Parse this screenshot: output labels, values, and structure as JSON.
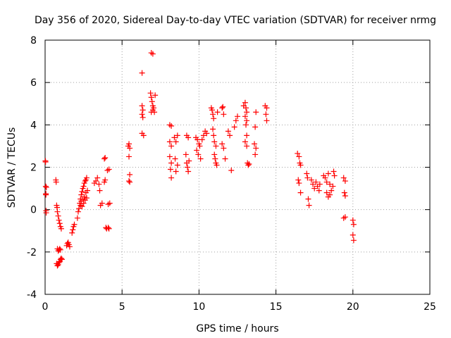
{
  "chart_data": {
    "type": "scatter",
    "title": "Day 356 of 2020, Sidereal Day-to-day VTEC variation (SDTVAR) for receiver nrmg",
    "xlabel": "GPS time / hours",
    "ylabel": "SDTVAR / TECUs",
    "xlim": [
      0,
      25
    ],
    "ylim": [
      -4,
      8
    ],
    "xticks": [
      "0",
      "5",
      "10",
      "15",
      "20",
      "25"
    ],
    "yticks": [
      "-4",
      "-2",
      "0",
      "2",
      "4",
      "6",
      "8"
    ],
    "grid": true,
    "marker": "plus",
    "color": "#ff0000",
    "series": [
      {
        "name": "SDTVAR",
        "points": [
          [
            0.02,
            2.3
          ],
          [
            0.03,
            2.25
          ],
          [
            0.04,
            1.1
          ],
          [
            0.05,
            0.7
          ],
          [
            0.05,
            0.75
          ],
          [
            0.06,
            -0.05
          ],
          [
            0.07,
            -0.15
          ],
          [
            0.08,
            1.05
          ],
          [
            0.7,
            1.4
          ],
          [
            0.72,
            1.3
          ],
          [
            0.75,
            0.2
          ],
          [
            0.78,
            0.1
          ],
          [
            0.8,
            -0.1
          ],
          [
            0.85,
            -0.3
          ],
          [
            0.9,
            -0.5
          ],
          [
            0.95,
            -0.65
          ],
          [
            1.0,
            -0.8
          ],
          [
            1.05,
            -0.9
          ],
          [
            0.8,
            -1.85
          ],
          [
            0.85,
            -1.95
          ],
          [
            0.9,
            -1.9
          ],
          [
            0.95,
            -1.85
          ],
          [
            1.0,
            -1.9
          ],
          [
            0.75,
            -2.55
          ],
          [
            0.8,
            -2.65
          ],
          [
            0.85,
            -2.6
          ],
          [
            0.9,
            -2.5
          ],
          [
            0.95,
            -2.45
          ],
          [
            1.0,
            -2.35
          ],
          [
            1.05,
            -2.3
          ],
          [
            1.1,
            -2.35
          ],
          [
            1.4,
            -1.7
          ],
          [
            1.45,
            -1.6
          ],
          [
            1.5,
            -1.55
          ],
          [
            1.55,
            -1.65
          ],
          [
            1.6,
            -1.75
          ],
          [
            1.75,
            -1.1
          ],
          [
            1.8,
            -0.95
          ],
          [
            1.85,
            -0.8
          ],
          [
            1.9,
            -0.7
          ],
          [
            2.1,
            -0.4
          ],
          [
            2.15,
            -0.1
          ],
          [
            2.2,
            0.05
          ],
          [
            2.25,
            0.3
          ],
          [
            2.3,
            0.5
          ],
          [
            2.35,
            0.7
          ],
          [
            2.4,
            0.85
          ],
          [
            2.45,
            1.0
          ],
          [
            2.5,
            1.1
          ],
          [
            2.55,
            1.25
          ],
          [
            2.6,
            1.35
          ],
          [
            2.65,
            1.4
          ],
          [
            2.7,
            1.5
          ],
          [
            2.3,
            0.2
          ],
          [
            2.35,
            0.4
          ],
          [
            2.4,
            0.15
          ],
          [
            2.45,
            0.5
          ],
          [
            2.5,
            0.3
          ],
          [
            2.55,
            0.6
          ],
          [
            2.6,
            0.45
          ],
          [
            2.65,
            0.8
          ],
          [
            2.7,
            0.55
          ],
          [
            2.75,
            0.9
          ],
          [
            3.2,
            1.25
          ],
          [
            3.3,
            1.35
          ],
          [
            3.4,
            1.5
          ],
          [
            3.5,
            1.2
          ],
          [
            3.55,
            0.9
          ],
          [
            3.6,
            0.2
          ],
          [
            3.7,
            0.3
          ],
          [
            3.85,
            2.4
          ],
          [
            3.9,
            2.45
          ],
          [
            3.85,
            1.3
          ],
          [
            3.9,
            1.4
          ],
          [
            3.95,
            -0.85
          ],
          [
            4.0,
            -0.9
          ],
          [
            4.1,
            -0.85
          ],
          [
            4.15,
            -0.9
          ],
          [
            4.1,
            0.25
          ],
          [
            4.2,
            0.3
          ],
          [
            4.05,
            1.85
          ],
          [
            4.15,
            1.9
          ],
          [
            5.4,
            3.0
          ],
          [
            5.45,
            3.1
          ],
          [
            5.5,
            2.9
          ],
          [
            5.45,
            2.5
          ],
          [
            5.5,
            1.65
          ],
          [
            5.45,
            1.35
          ],
          [
            5.5,
            1.3
          ],
          [
            6.3,
            4.9
          ],
          [
            6.35,
            4.7
          ],
          [
            6.3,
            4.5
          ],
          [
            6.35,
            4.35
          ],
          [
            6.3,
            3.6
          ],
          [
            6.4,
            3.5
          ],
          [
            6.3,
            6.45
          ],
          [
            6.9,
            7.4
          ],
          [
            7.0,
            7.35
          ],
          [
            6.85,
            5.5
          ],
          [
            6.9,
            5.3
          ],
          [
            6.95,
            5.1
          ],
          [
            7.0,
            4.9
          ],
          [
            7.05,
            4.8
          ],
          [
            7.1,
            4.6
          ],
          [
            7.15,
            5.4
          ],
          [
            6.9,
            4.6
          ],
          [
            7.0,
            4.7
          ],
          [
            8.1,
            4.0
          ],
          [
            8.2,
            3.95
          ],
          [
            8.1,
            3.2
          ],
          [
            8.2,
            3.0
          ],
          [
            8.1,
            2.5
          ],
          [
            8.2,
            2.2
          ],
          [
            8.15,
            1.9
          ],
          [
            8.2,
            1.5
          ],
          [
            8.4,
            3.4
          ],
          [
            8.5,
            3.2
          ],
          [
            8.45,
            2.4
          ],
          [
            8.5,
            1.8
          ],
          [
            8.6,
            3.5
          ],
          [
            8.6,
            2.1
          ],
          [
            9.2,
            3.5
          ],
          [
            9.3,
            3.4
          ],
          [
            9.15,
            2.6
          ],
          [
            9.2,
            2.2
          ],
          [
            9.25,
            2.0
          ],
          [
            9.3,
            1.8
          ],
          [
            9.35,
            2.3
          ],
          [
            9.8,
            3.4
          ],
          [
            9.9,
            3.3
          ],
          [
            9.85,
            2.8
          ],
          [
            9.95,
            2.6
          ],
          [
            10.0,
            3.1
          ],
          [
            10.05,
            3.0
          ],
          [
            10.1,
            2.4
          ],
          [
            10.2,
            3.3
          ],
          [
            10.3,
            3.5
          ],
          [
            10.4,
            3.7
          ],
          [
            10.5,
            3.6
          ],
          [
            10.8,
            4.8
          ],
          [
            10.85,
            4.7
          ],
          [
            10.9,
            4.5
          ],
          [
            10.95,
            4.3
          ],
          [
            10.9,
            3.8
          ],
          [
            10.95,
            3.5
          ],
          [
            11.0,
            2.6
          ],
          [
            11.05,
            2.4
          ],
          [
            11.1,
            2.2
          ],
          [
            11.15,
            2.1
          ],
          [
            11.0,
            3.2
          ],
          [
            11.1,
            3.0
          ],
          [
            11.2,
            4.6
          ],
          [
            11.5,
            4.8
          ],
          [
            11.55,
            4.85
          ],
          [
            11.6,
            4.5
          ],
          [
            11.5,
            3.1
          ],
          [
            11.6,
            2.9
          ],
          [
            11.7,
            2.4
          ],
          [
            11.9,
            3.7
          ],
          [
            12.0,
            3.5
          ],
          [
            12.1,
            1.85
          ],
          [
            12.3,
            3.9
          ],
          [
            12.4,
            4.2
          ],
          [
            12.5,
            4.4
          ],
          [
            12.9,
            4.9
          ],
          [
            13.0,
            5.05
          ],
          [
            13.05,
            4.8
          ],
          [
            13.1,
            4.6
          ],
          [
            13.0,
            4.4
          ],
          [
            13.1,
            4.2
          ],
          [
            13.05,
            4.0
          ],
          [
            13.1,
            3.5
          ],
          [
            13.0,
            3.2
          ],
          [
            13.1,
            3.0
          ],
          [
            13.15,
            2.2
          ],
          [
            13.2,
            2.1
          ],
          [
            13.25,
            2.15
          ],
          [
            13.6,
            3.1
          ],
          [
            13.7,
            2.9
          ],
          [
            13.65,
            2.6
          ],
          [
            13.7,
            4.6
          ],
          [
            13.65,
            3.9
          ],
          [
            14.3,
            4.9
          ],
          [
            14.4,
            4.8
          ],
          [
            14.35,
            4.5
          ],
          [
            14.4,
            4.2
          ],
          [
            16.4,
            2.65
          ],
          [
            16.5,
            2.5
          ],
          [
            16.55,
            2.2
          ],
          [
            16.6,
            2.1
          ],
          [
            16.45,
            1.4
          ],
          [
            16.5,
            1.25
          ],
          [
            16.6,
            0.8
          ],
          [
            17.0,
            1.7
          ],
          [
            17.05,
            1.5
          ],
          [
            17.1,
            0.5
          ],
          [
            17.15,
            0.2
          ],
          [
            17.3,
            1.4
          ],
          [
            17.4,
            1.2
          ],
          [
            17.5,
            1.0
          ],
          [
            17.6,
            1.3
          ],
          [
            17.7,
            1.1
          ],
          [
            17.8,
            0.9
          ],
          [
            17.85,
            1.2
          ],
          [
            18.1,
            1.6
          ],
          [
            18.2,
            1.5
          ],
          [
            18.3,
            1.3
          ],
          [
            18.4,
            1.7
          ],
          [
            18.5,
            1.2
          ],
          [
            18.3,
            0.8
          ],
          [
            18.4,
            0.6
          ],
          [
            18.5,
            0.7
          ],
          [
            18.6,
            0.9
          ],
          [
            18.7,
            1.1
          ],
          [
            18.75,
            1.8
          ],
          [
            18.8,
            1.6
          ],
          [
            19.4,
            1.5
          ],
          [
            19.5,
            1.35
          ],
          [
            19.45,
            0.8
          ],
          [
            19.5,
            0.65
          ],
          [
            19.4,
            -0.4
          ],
          [
            19.5,
            -0.35
          ],
          [
            20.0,
            -0.5
          ],
          [
            20.05,
            -0.7
          ],
          [
            20.0,
            -1.2
          ],
          [
            20.05,
            -1.45
          ]
        ]
      }
    ]
  }
}
